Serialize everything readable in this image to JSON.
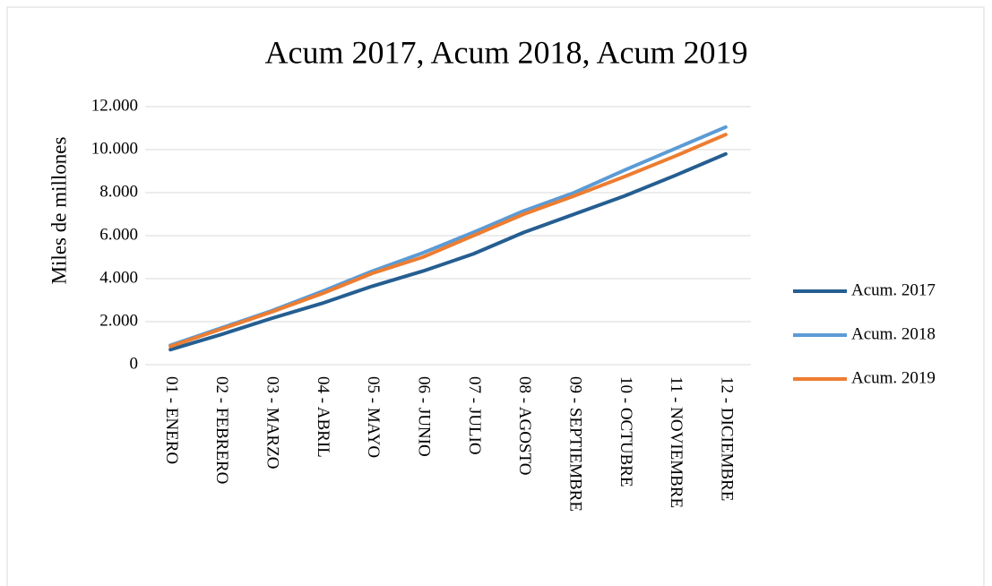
{
  "chart_data": {
    "type": "line",
    "title": "Acum 2017, Acum 2018, Acum 2019",
    "y_label": "Miles de millones",
    "categories": [
      "01 - ENERO",
      "02 - FEBRERO",
      "03 - MARZO",
      "04 - ABRIL",
      "05 - MAYO",
      "06 - JUNIO",
      "07 - JULIO",
      "08 - AGOSTO",
      "09 - SEPTIEMBRE",
      "10 - OCTUBRE",
      "11 - NOVIEMBRE",
      "12 - DICIEMBRE"
    ],
    "series": [
      {
        "name": "Acum. 2017",
        "color": "#255e91",
        "values": [
          700,
          1400,
          2150,
          2850,
          3650,
          4350,
          5150,
          6150,
          7000,
          7850,
          8800,
          9800
        ]
      },
      {
        "name": "Acum. 2018",
        "color": "#5b9bd5",
        "values": [
          900,
          1700,
          2500,
          3400,
          4350,
          5200,
          6150,
          7150,
          8000,
          9050,
          10050,
          11050
        ]
      },
      {
        "name": "Acum. 2019",
        "color": "#ed7d31",
        "values": [
          850,
          1650,
          2450,
          3300,
          4250,
          5000,
          6000,
          7000,
          7850,
          8750,
          9700,
          10700
        ]
      }
    ],
    "ylim": [
      0,
      12000
    ],
    "yticks": [
      0,
      {
        "value": 2000,
        "label": "2.000"
      },
      {
        "value": 4000,
        "label": "4.000"
      },
      {
        "value": 6000,
        "label": "6.000"
      },
      {
        "value": 8000,
        "label": "8.000"
      },
      {
        "value": 10000,
        "label": "10.000"
      },
      {
        "value": 12000,
        "label": "12.000"
      }
    ],
    "grid": true,
    "legend": "right"
  }
}
